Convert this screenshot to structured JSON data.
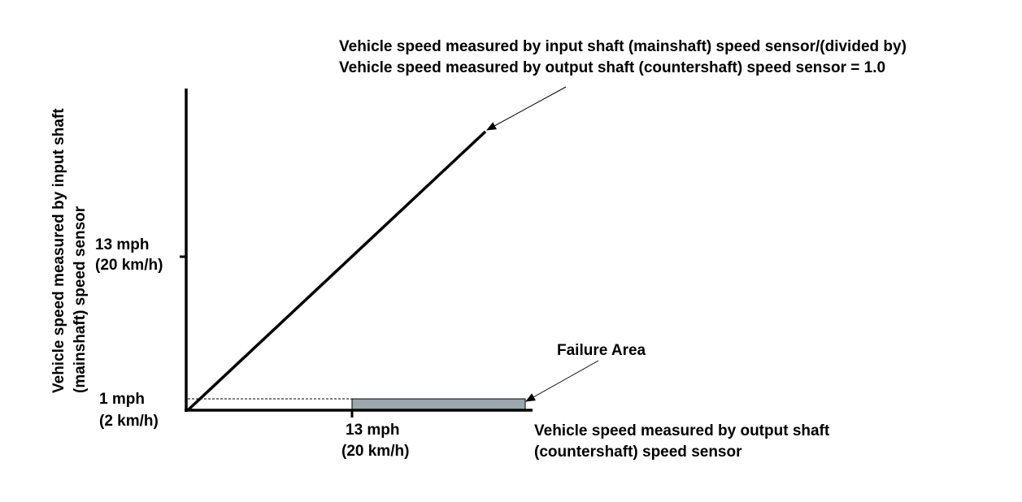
{
  "y_axis": {
    "label_line1": "Vehicle speed measured by input shaft",
    "label_line2": "(mainshaft) speed sensor",
    "tick_high_line1": "13 mph",
    "tick_high_line2": "(20 km/h)",
    "tick_low_line1": "1 mph",
    "tick_low_line2": "(2 km/h)"
  },
  "x_axis": {
    "label_line1": "Vehicle speed measured by output shaft",
    "label_line2": "(countershaft) speed sensor",
    "tick_line1": "13 mph",
    "tick_line2": "(20 km/h)"
  },
  "ratio_callout": {
    "line1": "Vehicle speed measured by input shaft (mainshaft) speed sensor/(divided by)",
    "line2": "Vehicle speed measured by output shaft (countershaft) speed sensor = 1.0"
  },
  "failure_area": {
    "label": "Failure Area",
    "fill_color": "#9aa8ad"
  }
}
